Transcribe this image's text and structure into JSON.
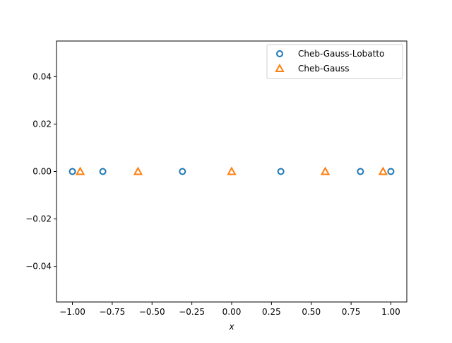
{
  "chart_data": {
    "type": "scatter",
    "title": "",
    "xlabel": "x",
    "ylabel": "",
    "xlim": [
      -1.1,
      1.1
    ],
    "ylim": [
      -0.055,
      0.055
    ],
    "x_ticks": [
      -1.0,
      -0.75,
      -0.5,
      -0.25,
      0.0,
      0.25,
      0.5,
      0.75,
      1.0
    ],
    "x_tick_labels": [
      "−1.00",
      "−0.75",
      "−0.50",
      "−0.25",
      "0.00",
      "0.25",
      "0.50",
      "0.75",
      "1.00"
    ],
    "y_ticks": [
      -0.04,
      -0.02,
      0.0,
      0.02,
      0.04
    ],
    "y_tick_labels": [
      "−0.04",
      "−0.02",
      "0.00",
      "0.02",
      "0.04"
    ],
    "grid": false,
    "legend_position": "top-right",
    "series": [
      {
        "name": "Cheb-Gauss-Lobatto",
        "marker": "circle",
        "color": "#1f77b4",
        "x": [
          -1.0,
          -0.809,
          -0.309,
          0.309,
          0.809,
          1.0
        ],
        "y": [
          0,
          0,
          0,
          0,
          0,
          0
        ]
      },
      {
        "name": "Cheb-Gauss",
        "marker": "triangle",
        "color": "#ff7f0e",
        "x": [
          -0.951,
          -0.588,
          0.0,
          0.588,
          0.951
        ],
        "y": [
          0,
          0,
          0,
          0,
          0
        ]
      }
    ]
  }
}
